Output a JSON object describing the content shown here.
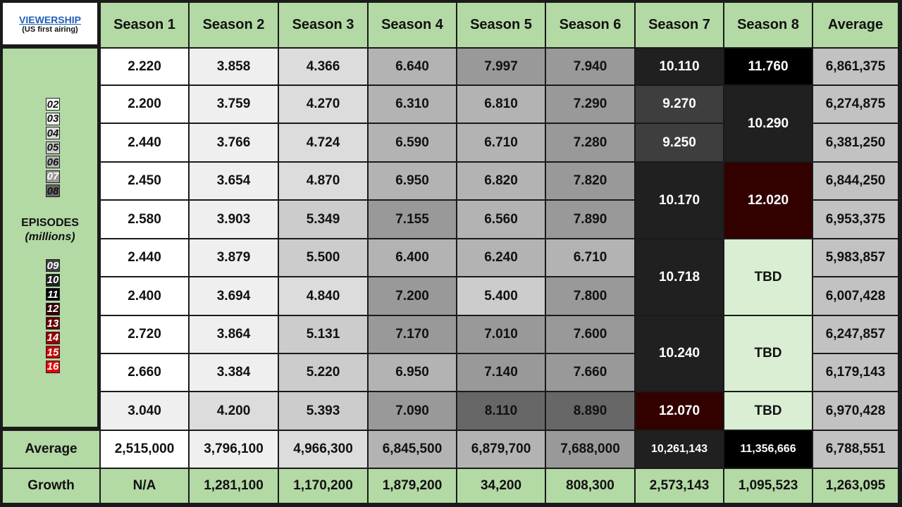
{
  "corner": {
    "title": "VIEWERSHIP",
    "subtitle": "(US first airing)"
  },
  "legend": {
    "label": "EPISODES",
    "unit": "(millions)",
    "group_a": [
      "02",
      "03",
      "04",
      "05",
      "06",
      "07",
      "08"
    ],
    "group_b": [
      "09",
      "10",
      "11",
      "12",
      "13",
      "14",
      "15",
      "16"
    ]
  },
  "chart_data": {
    "type": "table",
    "columns": [
      "Season 1",
      "Season 2",
      "Season 3",
      "Season 4",
      "Season 5",
      "Season 6",
      "Season 7",
      "Season 8",
      "Average"
    ],
    "seasons": [
      {
        "name": "Season 1",
        "episodes": [
          "2.220",
          "2.200",
          "2.440",
          "2.450",
          "2.580",
          "2.440",
          "2.400",
          "2.720",
          "2.660",
          "3.040"
        ]
      },
      {
        "name": "Season 2",
        "episodes": [
          "3.858",
          "3.759",
          "3.766",
          "3.654",
          "3.903",
          "3.879",
          "3.694",
          "3.864",
          "3.384",
          "4.200"
        ]
      },
      {
        "name": "Season 3",
        "episodes": [
          "4.366",
          "4.270",
          "4.724",
          "4.870",
          "5.349",
          "5.500",
          "4.840",
          "5.131",
          "5.220",
          "5.393"
        ]
      },
      {
        "name": "Season 4",
        "episodes": [
          "6.640",
          "6.310",
          "6.590",
          "6.950",
          "7.155",
          "6.400",
          "7.200",
          "7.170",
          "6.950",
          "7.090"
        ]
      },
      {
        "name": "Season 5",
        "episodes": [
          "7.997",
          "6.810",
          "6.710",
          "6.820",
          "6.560",
          "6.240",
          "5.400",
          "7.010",
          "7.140",
          "8.110"
        ]
      },
      {
        "name": "Season 6",
        "episodes": [
          "7.940",
          "7.290",
          "7.280",
          "7.820",
          "7.890",
          "6.710",
          "7.800",
          "7.600",
          "7.660",
          "8.890"
        ]
      },
      {
        "name": "Season 7",
        "episodes": [
          "10.110",
          "9.270",
          "9.250",
          "10.170",
          "10.718",
          "10.240",
          "12.070"
        ]
      },
      {
        "name": "Season 8",
        "episodes": [
          "11.760",
          "10.290",
          "12.020",
          "TBD",
          "TBD",
          "TBD"
        ]
      }
    ],
    "row_averages": [
      "6,861,375",
      "6,274,875",
      "6,381,250",
      "6,844,250",
      "6,953,375",
      "5,983,857",
      "6,007,428",
      "6,247,857",
      "6,179,143",
      "6,970,428"
    ],
    "average_row": {
      "label": "Average",
      "values": [
        "2,515,000",
        "3,796,100",
        "4,966,300",
        "6,845,500",
        "6,879,700",
        "7,688,000",
        "10,261,143",
        "11,356,666",
        "6,788,551"
      ]
    },
    "growth_row": {
      "label": "Growth",
      "values": [
        "N/A",
        "1,281,100",
        "1,170,200",
        "1,879,200",
        "34,200",
        "808,300",
        "2,573,143",
        "1,095,523",
        "1,263,095"
      ]
    }
  }
}
